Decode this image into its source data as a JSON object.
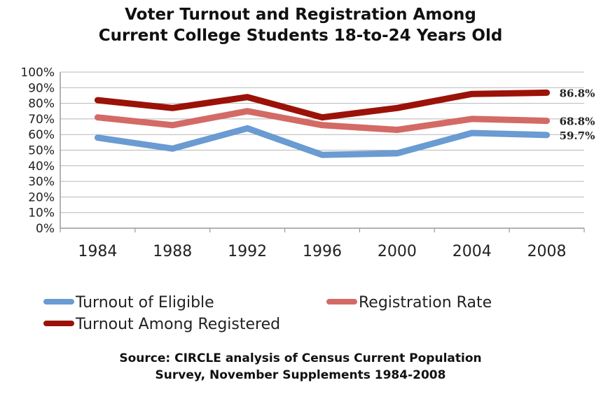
{
  "chart_data": {
    "type": "line",
    "title": [
      "Voter Turnout and Registration Among",
      "Current College Students 18-to-24 Years Old"
    ],
    "categories": [
      "1984",
      "1988",
      "1992",
      "1996",
      "2000",
      "2004",
      "2008"
    ],
    "y_ticks": [
      "0%",
      "10%",
      "20%",
      "30%",
      "40%",
      "50%",
      "60%",
      "70%",
      "80%",
      "90%",
      "100%"
    ],
    "ylim": [
      0,
      100
    ],
    "grid": true,
    "series": [
      {
        "name": "Turnout of Eligible",
        "color": "#6a9bd2",
        "values": [
          58,
          51,
          64,
          47,
          48,
          61,
          59.7
        ],
        "end_label": "59.7%"
      },
      {
        "name": "Registration Rate",
        "color": "#d46a65",
        "values": [
          71,
          66,
          75,
          66,
          63,
          70,
          68.8
        ],
        "end_label": "68.8%"
      },
      {
        "name": "Turnout Among Registered",
        "color": "#9b1208",
        "values": [
          82,
          77,
          84,
          71,
          77,
          86,
          86.8
        ],
        "end_label": "86.8%"
      }
    ],
    "legend_position": "bottom"
  },
  "source": [
    "Source: CIRCLE analysis of Census Current Population",
    "Survey, November Supplements 1984-2008"
  ]
}
